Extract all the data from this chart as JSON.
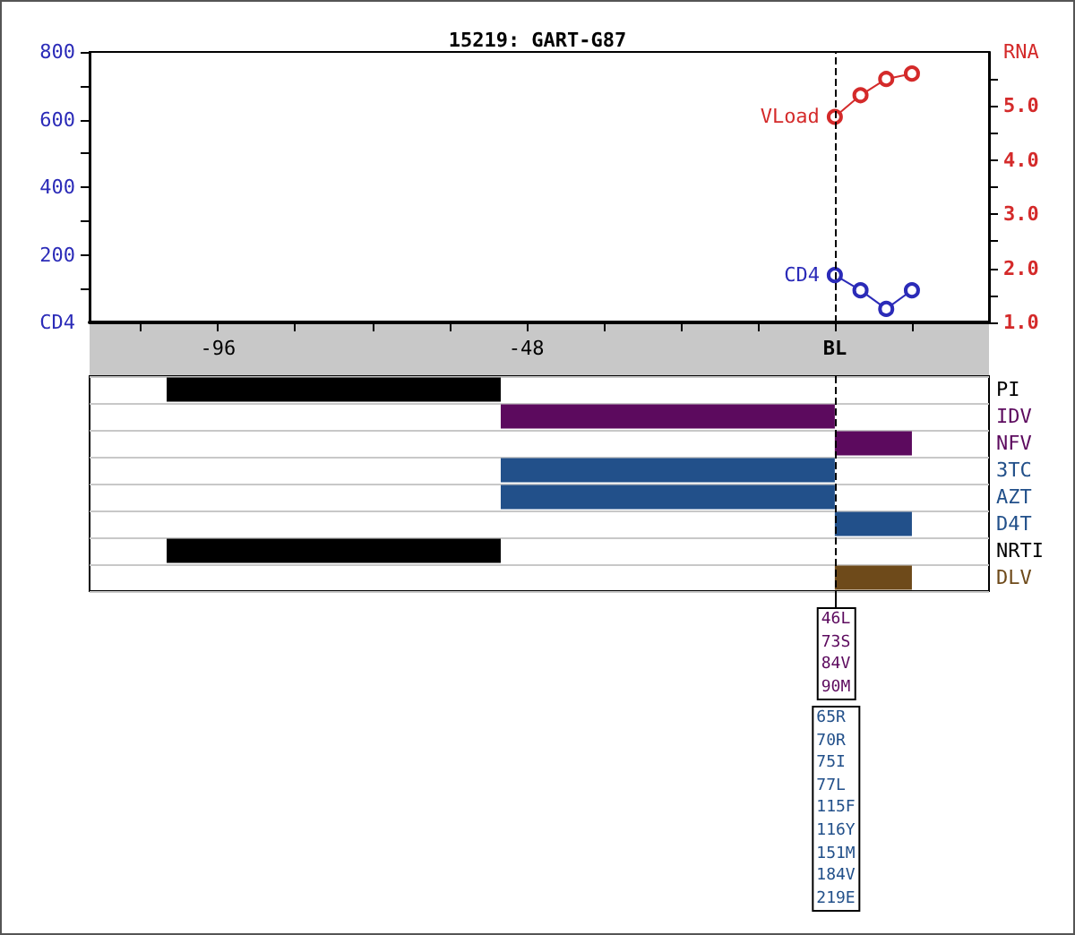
{
  "chart_data": [
    {
      "type": "line",
      "title": "15219: GART-G87",
      "ylabel": "CD4",
      "y2label": "RNA",
      "x": [
        0,
        4,
        8,
        12
      ],
      "series": [
        {
          "name": "CD4",
          "color": "#2b2bb8",
          "values": [
            140,
            95,
            40,
            95
          ]
        },
        {
          "name": "VLoad",
          "color": "#d42a2a",
          "values": [
            4.8,
            5.2,
            5.5,
            5.6
          ],
          "axis": "y2"
        }
      ],
      "xlim": [
        -116,
        24
      ],
      "xticks": [
        {
          "value": -108,
          "label": null
        },
        -96,
        {
          "value": -84,
          "label": null
        },
        {
          "value": -72,
          "label": null
        },
        {
          "value": -60,
          "label": null
        },
        -48,
        {
          "value": -36,
          "label": null
        },
        {
          "value": -24,
          "label": null
        },
        {
          "value": -12,
          "label": null
        },
        {
          "value": 0,
          "label": "BL"
        },
        {
          "value": 12,
          "label": null
        }
      ],
      "ylim": [
        0,
        800
      ],
      "yticks": [
        {
          "value": 100,
          "label": null
        },
        200,
        {
          "value": 300,
          "label": null
        },
        400,
        {
          "value": 500,
          "label": null
        },
        600,
        {
          "value": 700,
          "label": null
        },
        800
      ],
      "y2lim": [
        1,
        6
      ],
      "y2ticks": [
        {
          "value": 1,
          "label": "1.0"
        },
        {
          "value": 1.5,
          "label": null
        },
        {
          "value": 2,
          "label": "2.0"
        },
        {
          "value": 2.5,
          "label": null
        },
        {
          "value": 3,
          "label": "3.0"
        },
        {
          "value": 3.5,
          "label": null
        },
        {
          "value": 4,
          "label": "4.0"
        },
        {
          "value": 4.5,
          "label": null
        },
        {
          "value": 5,
          "label": "5.0"
        },
        {
          "value": 5.5,
          "label": null
        }
      ],
      "marker": "circle",
      "ref_lines": [
        {
          "axis": "x",
          "value": 0,
          "line_style": "dashed",
          "color": "#000000"
        }
      ]
    },
    {
      "type": "bar",
      "orientation": "horizontal",
      "categories": [
        "PI",
        "IDV",
        "NFV",
        "3TC",
        "AZT",
        "D4T",
        "NRTI",
        "DLV"
      ],
      "base": [
        -104,
        -52,
        0,
        -52,
        -52,
        0,
        -104,
        0
      ],
      "values": [
        52,
        52,
        12,
        52,
        52,
        12,
        52,
        12
      ],
      "colors": [
        "#000000",
        "#5c0a5e",
        "#5c0a5e",
        "#22508a",
        "#22508a",
        "#22508a",
        "#000000",
        "#6e4a1a"
      ],
      "xlim": [
        -116,
        24
      ],
      "tick_labels": "y",
      "grid": "y",
      "ref_lines": [
        {
          "axis": "x",
          "value": 0,
          "line_style": "dashed",
          "color": "#000000"
        }
      ],
      "annotations": [
        "46L 73S 84V 90M",
        "65R 70R 75I 77L 115F 116Y 151M 184V 219E"
      ]
    }
  ]
}
